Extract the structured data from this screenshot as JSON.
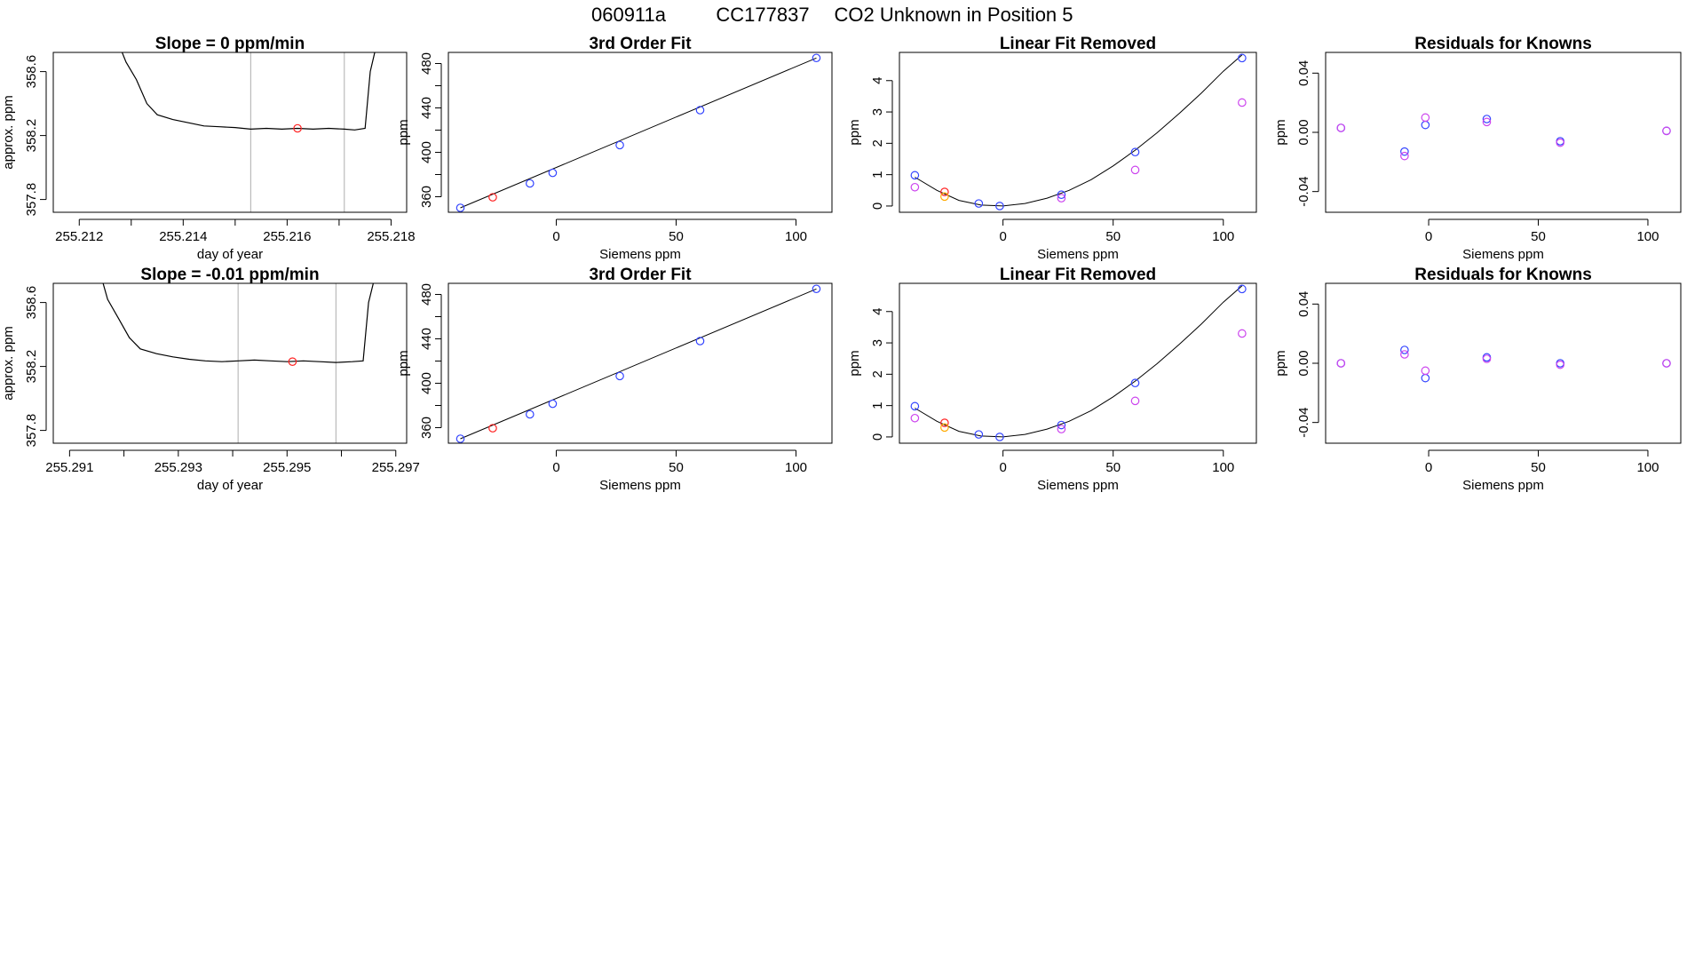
{
  "header": {
    "run_id": "060911a",
    "cylinder_id": "CC177837",
    "description": "CO2 Unknown in Position  5"
  },
  "colors": {
    "trace": "#000000",
    "fit_line": "#000000",
    "known_point": "#3344ff",
    "unknown_point": "#ff2222",
    "alt_point": "#cc44ee",
    "orange_point": "#ffaa00",
    "vline": "#bbbbbb",
    "frame": "#000000"
  },
  "chart_data": [
    {
      "id": "r1-slope",
      "type": "line",
      "title": "Slope =  0  ppm/min",
      "xlabel": "day of year",
      "ylabel": "approx. ppm",
      "xlim": [
        255.2115,
        255.2183
      ],
      "ylim": [
        357.72,
        358.72
      ],
      "xticks": [
        255.212,
        255.213,
        255.214,
        255.215,
        255.216,
        255.217,
        255.218
      ],
      "xtick_labels": [
        "255.212",
        "",
        "255.214",
        "",
        "255.216",
        "",
        "255.218"
      ],
      "yticks": [
        357.8,
        358.2,
        358.6
      ],
      "ytick_labels": [
        "357.8",
        "358.2",
        "358.6"
      ],
      "vlines": [
        255.2153,
        255.2171
      ],
      "trace": [
        [
          255.2128,
          358.74
        ],
        [
          255.2129,
          358.66
        ],
        [
          255.2131,
          358.55
        ],
        [
          255.2133,
          358.4
        ],
        [
          255.2135,
          358.33
        ],
        [
          255.2138,
          358.3
        ],
        [
          255.2141,
          358.28
        ],
        [
          255.2144,
          358.26
        ],
        [
          255.2147,
          358.255
        ],
        [
          255.215,
          358.25
        ],
        [
          255.2153,
          358.24
        ],
        [
          255.2156,
          358.245
        ],
        [
          255.2159,
          358.24
        ],
        [
          255.2162,
          358.245
        ],
        [
          255.2165,
          358.24
        ],
        [
          255.2168,
          358.245
        ],
        [
          255.2171,
          358.24
        ],
        [
          255.2173,
          358.235
        ],
        [
          255.2175,
          358.245
        ],
        [
          255.2176,
          358.6
        ],
        [
          255.2177,
          358.74
        ]
      ],
      "points": [
        {
          "x": 255.2162,
          "y": 358.245,
          "color": "unknown_point"
        }
      ]
    },
    {
      "id": "r1-fit",
      "type": "scatter",
      "title": "3rd Order Fit",
      "xlabel": "Siemens ppm",
      "ylabel": "ppm",
      "xlim": [
        -45,
        115
      ],
      "ylim": [
        346,
        490
      ],
      "xticks": [
        0,
        50,
        100
      ],
      "xtick_labels": [
        "0",
        "50",
        "100"
      ],
      "yticks": [
        360,
        380,
        400,
        420,
        440,
        460,
        480
      ],
      "ytick_labels": [
        "360",
        "",
        "400",
        "",
        "440",
        "",
        "480"
      ],
      "fit_line": [
        [
          -40,
          350
        ],
        [
          108.5,
          485
        ]
      ],
      "points": [
        {
          "x": -40,
          "y": 350,
          "color": "known_point"
        },
        {
          "x": -26.5,
          "y": 359.5,
          "color": "unknown_point"
        },
        {
          "x": -11,
          "y": 372,
          "color": "known_point"
        },
        {
          "x": -1.5,
          "y": 381.5,
          "color": "known_point"
        },
        {
          "x": 26.5,
          "y": 406.5,
          "color": "known_point"
        },
        {
          "x": 60,
          "y": 438,
          "color": "known_point"
        },
        {
          "x": 108.5,
          "y": 485,
          "color": "known_point"
        }
      ]
    },
    {
      "id": "r1-linrem",
      "type": "scatter",
      "title": "Linear Fit Removed",
      "xlabel": "Siemens ppm",
      "ylabel": "ppm",
      "xlim": [
        -47,
        115
      ],
      "ylim": [
        -0.2,
        4.9
      ],
      "xticks": [
        0,
        50,
        100
      ],
      "xtick_labels": [
        "0",
        "50",
        "100"
      ],
      "yticks": [
        0,
        1,
        2,
        3,
        4
      ],
      "ytick_labels": [
        "0",
        "1",
        "2",
        "3",
        "4"
      ],
      "fit_curve": [
        [
          -40,
          0.92
        ],
        [
          -30,
          0.5
        ],
        [
          -20,
          0.18
        ],
        [
          -10,
          0.03
        ],
        [
          0,
          0.0
        ],
        [
          10,
          0.08
        ],
        [
          20,
          0.25
        ],
        [
          30,
          0.5
        ],
        [
          40,
          0.84
        ],
        [
          50,
          1.28
        ],
        [
          60,
          1.78
        ],
        [
          70,
          2.34
        ],
        [
          80,
          2.95
        ],
        [
          90,
          3.6
        ],
        [
          100,
          4.3
        ],
        [
          108.5,
          4.82
        ]
      ],
      "points": [
        {
          "x": -40,
          "y": 0.98,
          "color": "known_point"
        },
        {
          "x": -40,
          "y": 0.6,
          "color": "alt_point"
        },
        {
          "x": -26.5,
          "y": 0.45,
          "color": "unknown_point"
        },
        {
          "x": -26.5,
          "y": 0.3,
          "color": "orange_point"
        },
        {
          "x": -11,
          "y": 0.08,
          "color": "known_point"
        },
        {
          "x": -1.5,
          "y": 0.0,
          "color": "known_point"
        },
        {
          "x": 26.5,
          "y": 0.36,
          "color": "known_point"
        },
        {
          "x": 26.5,
          "y": 0.25,
          "color": "alt_point"
        },
        {
          "x": 60,
          "y": 1.72,
          "color": "known_point"
        },
        {
          "x": 60,
          "y": 1.15,
          "color": "alt_point"
        },
        {
          "x": 108.5,
          "y": 4.72,
          "color": "known_point"
        },
        {
          "x": 108.5,
          "y": 3.3,
          "color": "alt_point"
        }
      ]
    },
    {
      "id": "r1-resid",
      "type": "scatter",
      "title": "Residuals for Knowns",
      "xlabel": "Siemens ppm",
      "ylabel": "ppm",
      "xlim": [
        -47,
        115
      ],
      "ylim": [
        -0.054,
        0.054
      ],
      "xticks": [
        0,
        50,
        100
      ],
      "xtick_labels": [
        "0",
        "50",
        "100"
      ],
      "yticks": [
        -0.04,
        0.0,
        0.04
      ],
      "ytick_labels": [
        "-0.04",
        "0.00",
        "0.04"
      ],
      "points": [
        {
          "x": -40,
          "y": 0.003,
          "color": "known_point"
        },
        {
          "x": -40,
          "y": 0.003,
          "color": "alt_point"
        },
        {
          "x": -11,
          "y": -0.013,
          "color": "known_point"
        },
        {
          "x": -11,
          "y": -0.016,
          "color": "alt_point"
        },
        {
          "x": -1.5,
          "y": 0.005,
          "color": "known_point"
        },
        {
          "x": -1.5,
          "y": 0.01,
          "color": "alt_point"
        },
        {
          "x": 26.5,
          "y": 0.009,
          "color": "known_point"
        },
        {
          "x": 26.5,
          "y": 0.007,
          "color": "alt_point"
        },
        {
          "x": 60,
          "y": -0.006,
          "color": "known_point"
        },
        {
          "x": 60,
          "y": -0.007,
          "color": "alt_point"
        },
        {
          "x": 108.5,
          "y": 0.001,
          "color": "known_point"
        },
        {
          "x": 108.5,
          "y": 0.001,
          "color": "alt_point"
        }
      ]
    },
    {
      "id": "r2-slope",
      "type": "line",
      "title": "Slope =  -0.01  ppm/min",
      "xlabel": "day of year",
      "ylabel": "approx. ppm",
      "xlim": [
        255.2907,
        255.2972
      ],
      "ylim": [
        357.72,
        358.72
      ],
      "xticks": [
        255.291,
        255.292,
        255.293,
        255.294,
        255.295,
        255.296,
        255.297
      ],
      "xtick_labels": [
        "255.291",
        "",
        "255.293",
        "",
        "255.295",
        "",
        "255.297"
      ],
      "yticks": [
        357.8,
        358.2,
        358.6
      ],
      "ytick_labels": [
        "357.8",
        "358.2",
        "358.6"
      ],
      "vlines": [
        255.2941,
        255.2959
      ],
      "trace": [
        [
          255.2916,
          358.74
        ],
        [
          255.2917,
          358.62
        ],
        [
          255.2919,
          358.5
        ],
        [
          255.2921,
          358.38
        ],
        [
          255.2923,
          358.31
        ],
        [
          255.2926,
          358.28
        ],
        [
          255.2929,
          358.26
        ],
        [
          255.2932,
          358.245
        ],
        [
          255.2935,
          358.235
        ],
        [
          255.2938,
          358.23
        ],
        [
          255.2941,
          358.235
        ],
        [
          255.2944,
          358.24
        ],
        [
          255.2947,
          358.235
        ],
        [
          255.295,
          358.23
        ],
        [
          255.2953,
          358.235
        ],
        [
          255.2956,
          358.23
        ],
        [
          255.2959,
          358.225
        ],
        [
          255.2962,
          358.23
        ],
        [
          255.2964,
          358.235
        ],
        [
          255.2965,
          358.6
        ],
        [
          255.2966,
          358.74
        ]
      ],
      "points": [
        {
          "x": 255.2951,
          "y": 358.23,
          "color": "unknown_point"
        }
      ]
    },
    {
      "id": "r2-fit",
      "type": "scatter",
      "title": "3rd Order Fit",
      "xlabel": "Siemens ppm",
      "ylabel": "ppm",
      "xlim": [
        -45,
        115
      ],
      "ylim": [
        346,
        490
      ],
      "xticks": [
        0,
        50,
        100
      ],
      "xtick_labels": [
        "0",
        "50",
        "100"
      ],
      "yticks": [
        360,
        380,
        400,
        420,
        440,
        460,
        480
      ],
      "ytick_labels": [
        "360",
        "",
        "400",
        "",
        "440",
        "",
        "480"
      ],
      "fit_line": [
        [
          -40,
          350
        ],
        [
          108.5,
          485
        ]
      ],
      "points": [
        {
          "x": -40,
          "y": 350,
          "color": "known_point"
        },
        {
          "x": -26.5,
          "y": 359.5,
          "color": "unknown_point"
        },
        {
          "x": -11,
          "y": 372,
          "color": "known_point"
        },
        {
          "x": -1.5,
          "y": 381.5,
          "color": "known_point"
        },
        {
          "x": 26.5,
          "y": 406.5,
          "color": "known_point"
        },
        {
          "x": 60,
          "y": 438,
          "color": "known_point"
        },
        {
          "x": 108.5,
          "y": 485,
          "color": "known_point"
        }
      ]
    },
    {
      "id": "r2-linrem",
      "type": "scatter",
      "title": "Linear Fit Removed",
      "xlabel": "Siemens ppm",
      "ylabel": "ppm",
      "xlim": [
        -47,
        115
      ],
      "ylim": [
        -0.2,
        4.9
      ],
      "xticks": [
        0,
        50,
        100
      ],
      "xtick_labels": [
        "0",
        "50",
        "100"
      ],
      "yticks": [
        0,
        1,
        2,
        3,
        4
      ],
      "ytick_labels": [
        "0",
        "1",
        "2",
        "3",
        "4"
      ],
      "fit_curve": [
        [
          -40,
          0.92
        ],
        [
          -30,
          0.5
        ],
        [
          -20,
          0.18
        ],
        [
          -10,
          0.03
        ],
        [
          0,
          0.0
        ],
        [
          10,
          0.08
        ],
        [
          20,
          0.25
        ],
        [
          30,
          0.5
        ],
        [
          40,
          0.84
        ],
        [
          50,
          1.28
        ],
        [
          60,
          1.78
        ],
        [
          70,
          2.34
        ],
        [
          80,
          2.95
        ],
        [
          90,
          3.6
        ],
        [
          100,
          4.3
        ],
        [
          108.5,
          4.82
        ]
      ],
      "points": [
        {
          "x": -40,
          "y": 0.98,
          "color": "known_point"
        },
        {
          "x": -40,
          "y": 0.6,
          "color": "alt_point"
        },
        {
          "x": -26.5,
          "y": 0.45,
          "color": "unknown_point"
        },
        {
          "x": -26.5,
          "y": 0.3,
          "color": "orange_point"
        },
        {
          "x": -11,
          "y": 0.08,
          "color": "known_point"
        },
        {
          "x": -1.5,
          "y": 0.0,
          "color": "known_point"
        },
        {
          "x": 26.5,
          "y": 0.38,
          "color": "known_point"
        },
        {
          "x": 26.5,
          "y": 0.25,
          "color": "alt_point"
        },
        {
          "x": 60,
          "y": 1.72,
          "color": "known_point"
        },
        {
          "x": 60,
          "y": 1.15,
          "color": "alt_point"
        },
        {
          "x": 108.5,
          "y": 4.72,
          "color": "known_point"
        },
        {
          "x": 108.5,
          "y": 3.3,
          "color": "alt_point"
        }
      ]
    },
    {
      "id": "r2-resid",
      "type": "scatter",
      "title": "Residuals for Knowns",
      "xlabel": "Siemens ppm",
      "ylabel": "ppm",
      "xlim": [
        -47,
        115
      ],
      "ylim": [
        -0.054,
        0.054
      ],
      "xticks": [
        0,
        50,
        100
      ],
      "xtick_labels": [
        "0",
        "50",
        "100"
      ],
      "yticks": [
        -0.04,
        0.0,
        0.04
      ],
      "ytick_labels": [
        "-0.04",
        "0.00",
        "0.04"
      ],
      "points": [
        {
          "x": -40,
          "y": 0.0,
          "color": "known_point"
        },
        {
          "x": -40,
          "y": 0.0,
          "color": "alt_point"
        },
        {
          "x": -11,
          "y": 0.009,
          "color": "known_point"
        },
        {
          "x": -11,
          "y": 0.006,
          "color": "alt_point"
        },
        {
          "x": -1.5,
          "y": -0.01,
          "color": "known_point"
        },
        {
          "x": -1.5,
          "y": -0.005,
          "color": "alt_point"
        },
        {
          "x": 26.5,
          "y": 0.004,
          "color": "known_point"
        },
        {
          "x": 26.5,
          "y": 0.003,
          "color": "alt_point"
        },
        {
          "x": 60,
          "y": 0.0,
          "color": "known_point"
        },
        {
          "x": 60,
          "y": -0.001,
          "color": "alt_point"
        },
        {
          "x": 108.5,
          "y": 0.0,
          "color": "known_point"
        },
        {
          "x": 108.5,
          "y": 0.0,
          "color": "alt_point"
        }
      ]
    }
  ]
}
